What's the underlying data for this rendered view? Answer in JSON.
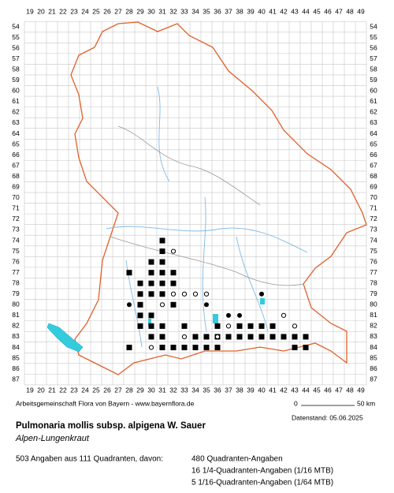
{
  "map": {
    "columns": [
      19,
      20,
      21,
      22,
      23,
      24,
      25,
      26,
      27,
      28,
      29,
      30,
      31,
      32,
      33,
      34,
      35,
      36,
      37,
      38,
      39,
      40,
      41,
      42,
      43,
      44,
      45,
      46,
      47,
      48,
      49
    ],
    "rows": [
      54,
      55,
      56,
      57,
      58,
      59,
      60,
      61,
      62,
      63,
      64,
      65,
      66,
      67,
      68,
      69,
      70,
      71,
      72,
      73,
      74,
      75,
      76,
      77,
      78,
      79,
      80,
      81,
      82,
      83,
      84,
      85,
      86,
      87
    ],
    "occurrences": [
      {
        "col": 31,
        "row": 74,
        "kind": "square"
      },
      {
        "col": 31,
        "row": 75,
        "kind": "square"
      },
      {
        "col": 30,
        "row": 76,
        "kind": "square"
      },
      {
        "col": 31,
        "row": 76,
        "kind": "square"
      },
      {
        "col": 30,
        "row": 77,
        "kind": "square"
      },
      {
        "col": 31,
        "row": 77,
        "kind": "square"
      },
      {
        "col": 32,
        "row": 77,
        "kind": "square"
      },
      {
        "col": 28,
        "row": 77,
        "kind": "square"
      },
      {
        "col": 29,
        "row": 78,
        "kind": "square"
      },
      {
        "col": 30,
        "row": 78,
        "kind": "square"
      },
      {
        "col": 31,
        "row": 78,
        "kind": "square"
      },
      {
        "col": 32,
        "row": 78,
        "kind": "square"
      },
      {
        "col": 29,
        "row": 79,
        "kind": "square"
      },
      {
        "col": 30,
        "row": 79,
        "kind": "square"
      },
      {
        "col": 31,
        "row": 79,
        "kind": "square"
      },
      {
        "col": 28,
        "row": 80,
        "kind": "dot"
      },
      {
        "col": 29,
        "row": 80,
        "kind": "square"
      },
      {
        "col": 29,
        "row": 81,
        "kind": "square"
      },
      {
        "col": 30,
        "row": 81,
        "kind": "square"
      },
      {
        "col": 29,
        "row": 82,
        "kind": "square"
      },
      {
        "col": 30,
        "row": 82,
        "kind": "square"
      },
      {
        "col": 31,
        "row": 82,
        "kind": "square"
      },
      {
        "col": 30,
        "row": 83,
        "kind": "square"
      },
      {
        "col": 31,
        "row": 83,
        "kind": "square"
      },
      {
        "col": 28,
        "row": 84,
        "kind": "square"
      },
      {
        "col": 31,
        "row": 84,
        "kind": "square"
      },
      {
        "col": 32,
        "row": 84,
        "kind": "square"
      },
      {
        "col": 33,
        "row": 82,
        "kind": "square"
      },
      {
        "col": 32,
        "row": 80,
        "kind": "square"
      },
      {
        "col": 34,
        "row": 83,
        "kind": "square"
      },
      {
        "col": 34,
        "row": 84,
        "kind": "square"
      },
      {
        "col": 35,
        "row": 83,
        "kind": "square"
      },
      {
        "col": 35,
        "row": 84,
        "kind": "square"
      },
      {
        "col": 36,
        "row": 83,
        "kind": "square"
      },
      {
        "col": 37,
        "row": 83,
        "kind": "square"
      },
      {
        "col": 38,
        "row": 83,
        "kind": "square"
      },
      {
        "col": 39,
        "row": 83,
        "kind": "square"
      },
      {
        "col": 36,
        "row": 82,
        "kind": "square"
      },
      {
        "col": 38,
        "row": 82,
        "kind": "square"
      },
      {
        "col": 38,
        "row": 81,
        "kind": "dot"
      },
      {
        "col": 39,
        "row": 82,
        "kind": "square"
      },
      {
        "col": 40,
        "row": 82,
        "kind": "square"
      },
      {
        "col": 40,
        "row": 83,
        "kind": "square"
      },
      {
        "col": 41,
        "row": 82,
        "kind": "square"
      },
      {
        "col": 41,
        "row": 83,
        "kind": "square"
      },
      {
        "col": 42,
        "row": 83,
        "kind": "square"
      },
      {
        "col": 43,
        "row": 83,
        "kind": "square"
      },
      {
        "col": 43,
        "row": 84,
        "kind": "square"
      },
      {
        "col": 44,
        "row": 83,
        "kind": "square"
      },
      {
        "col": 44,
        "row": 84,
        "kind": "square"
      },
      {
        "col": 37,
        "row": 81,
        "kind": "dot"
      },
      {
        "col": 36,
        "row": 84,
        "kind": "square"
      },
      {
        "col": 33,
        "row": 84,
        "kind": "square"
      },
      {
        "col": 40,
        "row": 79,
        "kind": "dot"
      },
      {
        "col": 35,
        "row": 80,
        "kind": "dot"
      },
      {
        "col": 32,
        "row": 75,
        "kind": "circle"
      },
      {
        "col": 31,
        "row": 80,
        "kind": "circle"
      },
      {
        "col": 32,
        "row": 79,
        "kind": "circle"
      },
      {
        "col": 33,
        "row": 79,
        "kind": "circle"
      },
      {
        "col": 35,
        "row": 79,
        "kind": "circle"
      },
      {
        "col": 37,
        "row": 82,
        "kind": "circle"
      },
      {
        "col": 36,
        "row": 83,
        "kind": "circle"
      },
      {
        "col": 42,
        "row": 81,
        "kind": "circle"
      },
      {
        "col": 33,
        "row": 83,
        "kind": "circle"
      },
      {
        "col": 30,
        "row": 84,
        "kind": "circle"
      },
      {
        "col": 43,
        "row": 82,
        "kind": "circle"
      },
      {
        "col": 34,
        "row": 79,
        "kind": "circle"
      }
    ]
  },
  "footer": {
    "credit": "Arbeitsgemeinschaft Flora von Bayern - www.bayernflora.de",
    "scale_start": "0",
    "scale_end": "50 km",
    "date": "Datenstand: 05.06.2025"
  },
  "species": {
    "name": "Pulmonaria mollis subsp. alpigena W. Sauer",
    "common_name": "Alpen-Lungenkraut"
  },
  "summary": {
    "total": "503 Angaben aus 111 Quadranten, davon:",
    "lines": [
      "480 Quadranten-Angaben",
      "16 1/4-Quadranten-Angaben (1/16 MTB)",
      "5 1/16-Quadranten-Angaben (1/64 MTB)"
    ]
  }
}
